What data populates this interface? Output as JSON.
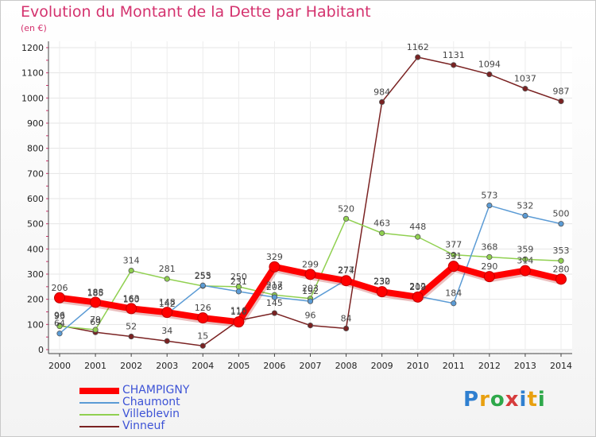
{
  "title": "Evolution du Montant de la Dette par Habitant",
  "subtitle": "(en €)",
  "logo": {
    "text": "Proxiti",
    "letter_colors": [
      "#2f7fd0",
      "#e8a010",
      "#2ea84a",
      "#d63c3c",
      "#2f7fd0",
      "#e8a010",
      "#2ea84a"
    ]
  },
  "chart_data": {
    "type": "line",
    "title": "Evolution du Montant de la Dette par Habitant",
    "ylabel": "(en €)",
    "x": [
      "2000",
      "2001",
      "2002",
      "2003",
      "2004",
      "2005",
      "2006",
      "2007",
      "2008",
      "2009",
      "2010",
      "2011",
      "2012",
      "2013",
      "2014"
    ],
    "yticks": [
      0,
      100,
      200,
      300,
      400,
      500,
      600,
      700,
      800,
      900,
      1000,
      1100,
      1200
    ],
    "ylim": [
      0,
      1200
    ],
    "grid": true,
    "legend_position": "bottom-left",
    "series": [
      {
        "name": "CHAMPIGNY",
        "color": "#ff0000",
        "values": [
          206,
          188,
          163,
          148,
          126,
          110,
          329,
          299,
          274,
          230,
          209,
          331,
          290,
          314,
          280
        ]
      },
      {
        "name": "Chaumont",
        "color": "#5b9bd5",
        "values": [
          64,
          185,
          160,
          142,
          255,
          231,
          208,
          192,
          277,
          232,
          212,
          184,
          573,
          532,
          500
        ]
      },
      {
        "name": "Villeblevin",
        "color": "#90d050",
        "values": [
          93,
          79,
          314,
          281,
          253,
          250,
          217,
          203,
          520,
          463,
          448,
          377,
          368,
          359,
          353
        ]
      },
      {
        "name": "Vinneuf",
        "color": "#7a2222",
        "values": [
          96,
          69,
          52,
          34,
          15,
          116,
          145,
          96,
          84,
          984,
          1162,
          1131,
          1094,
          1037,
          987
        ]
      }
    ]
  }
}
